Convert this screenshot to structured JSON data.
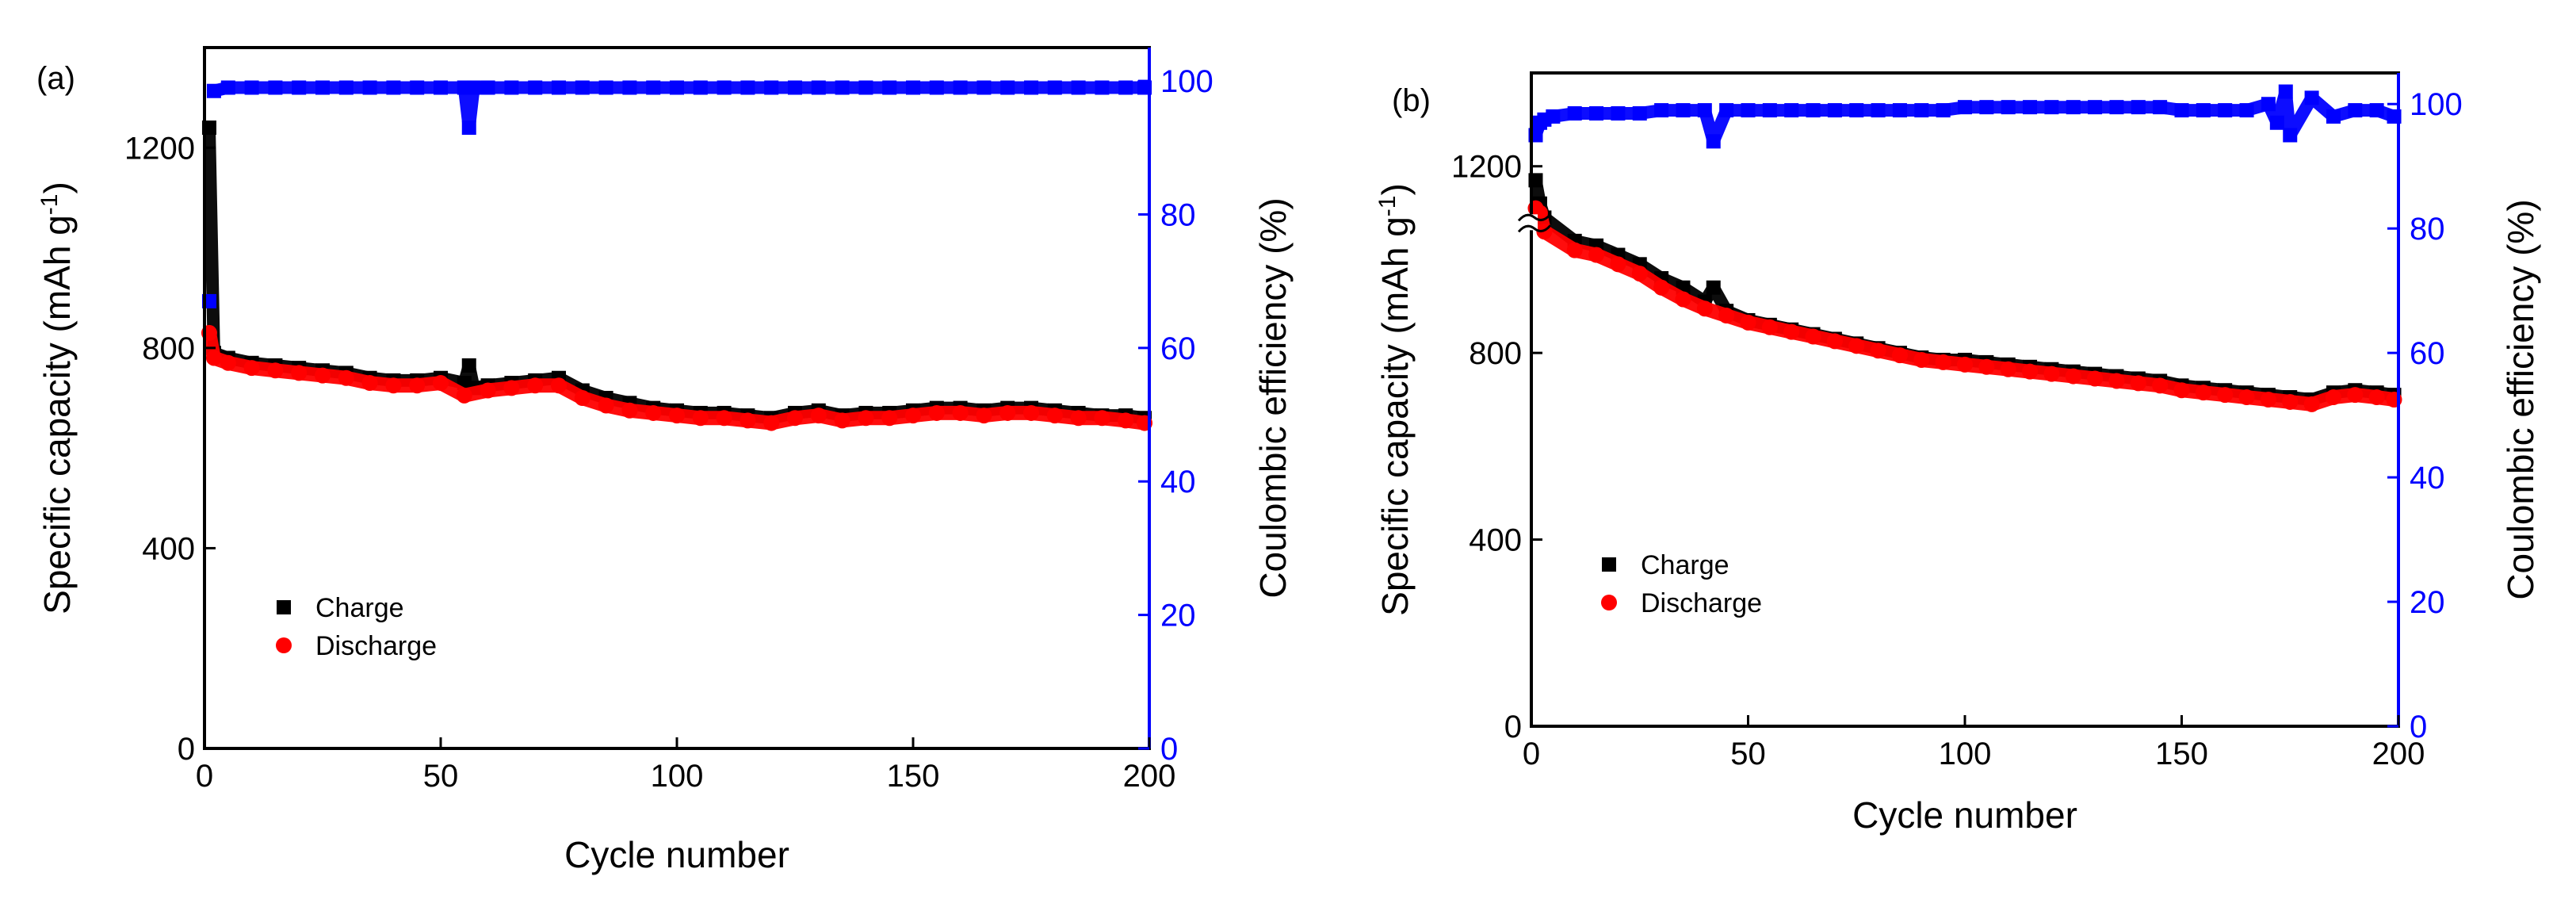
{
  "colors": {
    "charge": "#000000",
    "discharge": "#ff0000",
    "coulombic_efficiency": "#0000ff",
    "axis": "#000000"
  },
  "chart_data": [
    {
      "type": "scatter",
      "panel_label": "(a)",
      "xlabel": "Cycle number",
      "ylabel_left": "Specific capacity (mAh g-1)",
      "ylabel_left_main": "Specific capacity (mAh g",
      "ylabel_left_sup": "-1",
      "ylabel_left_close": ")",
      "ylabel_right": "Coulombic efficiency (%)",
      "xlim": [
        0,
        200
      ],
      "ylim_left": [
        0,
        1400
      ],
      "ylim_right": [
        0,
        105
      ],
      "x_ticks": [
        0,
        50,
        100,
        150,
        200
      ],
      "y_left_ticks": [
        0,
        400,
        800,
        1200
      ],
      "y_right_ticks": [
        0,
        20,
        40,
        60,
        80,
        100
      ],
      "legend": {
        "position": "lower-left",
        "entries": [
          "Charge",
          "Discharge"
        ]
      },
      "series": [
        {
          "name": "Charge",
          "axis": "left",
          "marker": "square",
          "x": [
            1,
            2,
            5,
            10,
            15,
            20,
            25,
            30,
            35,
            40,
            45,
            50,
            55,
            56,
            57,
            60,
            65,
            70,
            75,
            80,
            85,
            90,
            95,
            100,
            105,
            110,
            115,
            120,
            125,
            130,
            135,
            140,
            145,
            150,
            155,
            160,
            165,
            170,
            175,
            180,
            185,
            190,
            195,
            199
          ],
          "y": [
            1240,
            790,
            780,
            770,
            765,
            760,
            755,
            750,
            740,
            735,
            735,
            740,
            730,
            765,
            720,
            725,
            730,
            735,
            740,
            715,
            700,
            690,
            680,
            675,
            670,
            670,
            665,
            660,
            670,
            675,
            665,
            670,
            670,
            675,
            680,
            680,
            675,
            680,
            680,
            675,
            670,
            665,
            665,
            660
          ]
        },
        {
          "name": "Discharge",
          "axis": "left",
          "marker": "circle",
          "x": [
            1,
            2,
            5,
            10,
            15,
            20,
            25,
            30,
            35,
            40,
            45,
            50,
            55,
            60,
            65,
            70,
            75,
            80,
            85,
            90,
            95,
            100,
            105,
            110,
            115,
            120,
            125,
            130,
            135,
            140,
            145,
            150,
            155,
            160,
            165,
            170,
            175,
            180,
            185,
            190,
            195,
            199
          ],
          "y": [
            830,
            780,
            770,
            760,
            755,
            750,
            745,
            740,
            730,
            725,
            725,
            730,
            705,
            715,
            720,
            725,
            725,
            700,
            685,
            675,
            670,
            665,
            660,
            660,
            655,
            650,
            660,
            665,
            655,
            660,
            660,
            665,
            670,
            670,
            665,
            670,
            670,
            665,
            660,
            660,
            655,
            650
          ]
        },
        {
          "name": "Coulombic efficiency",
          "axis": "right",
          "marker": "square",
          "x": [
            1,
            2,
            5,
            10,
            15,
            20,
            25,
            30,
            35,
            40,
            45,
            50,
            55,
            56,
            57,
            60,
            65,
            70,
            75,
            80,
            85,
            90,
            95,
            100,
            105,
            110,
            115,
            120,
            125,
            130,
            135,
            140,
            145,
            150,
            155,
            160,
            165,
            170,
            175,
            180,
            185,
            190,
            195,
            199
          ],
          "y": [
            67,
            98.5,
            99,
            99,
            99,
            99,
            99,
            99,
            99,
            99,
            99,
            99,
            99,
            93,
            99,
            99,
            99,
            99,
            99,
            99,
            99,
            99,
            99,
            99,
            99,
            99,
            99,
            99,
            99,
            99,
            99,
            99,
            99,
            99,
            99,
            99,
            99,
            99,
            99,
            99,
            99,
            99,
            99,
            99
          ]
        }
      ]
    },
    {
      "type": "scatter",
      "panel_label": "(b)",
      "xlabel": "Cycle number",
      "ylabel_left": "Specific capacity (mAh g-1)",
      "ylabel_left_main": "Specific capacity (mAh g",
      "ylabel_left_sup": "-1",
      "ylabel_left_close": ")",
      "ylabel_right": "Coulombic efficiency (%)",
      "xlim": [
        0,
        200
      ],
      "ylim_left": [
        0,
        1400
      ],
      "ylim_right": [
        0,
        105
      ],
      "x_ticks": [
        0,
        50,
        100,
        150,
        200
      ],
      "y_left_ticks": [
        0,
        400,
        800,
        1200
      ],
      "y_right_ticks": [
        0,
        20,
        40,
        60,
        80,
        100
      ],
      "axis_break_left": true,
      "legend": {
        "position": "center-left",
        "entries": [
          "Charge",
          "Discharge"
        ]
      },
      "series": [
        {
          "name": "Charge",
          "axis": "left",
          "marker": "square",
          "x": [
            1,
            2,
            3,
            10,
            15,
            20,
            25,
            30,
            35,
            40,
            42,
            45,
            50,
            55,
            60,
            65,
            70,
            75,
            80,
            85,
            90,
            95,
            100,
            105,
            110,
            115,
            120,
            125,
            130,
            135,
            140,
            145,
            150,
            155,
            160,
            165,
            170,
            175,
            180,
            185,
            190,
            195,
            199
          ],
          "y": [
            1170,
            1120,
            1090,
            1040,
            1030,
            1010,
            990,
            960,
            940,
            910,
            940,
            890,
            870,
            860,
            850,
            840,
            830,
            820,
            810,
            800,
            790,
            785,
            785,
            780,
            775,
            770,
            765,
            760,
            755,
            750,
            745,
            740,
            730,
            725,
            720,
            715,
            710,
            705,
            700,
            715,
            720,
            715,
            710
          ]
        },
        {
          "name": "Discharge",
          "axis": "left",
          "marker": "circle",
          "x": [
            1,
            2,
            3,
            10,
            15,
            20,
            25,
            30,
            35,
            40,
            45,
            50,
            55,
            60,
            65,
            70,
            75,
            80,
            85,
            90,
            95,
            100,
            105,
            110,
            115,
            120,
            125,
            130,
            135,
            140,
            145,
            150,
            155,
            160,
            165,
            170,
            175,
            180,
            185,
            190,
            195,
            199
          ],
          "y": [
            1110,
            1100,
            1060,
            1020,
            1010,
            990,
            970,
            940,
            915,
            895,
            880,
            865,
            855,
            845,
            835,
            825,
            815,
            805,
            795,
            785,
            780,
            775,
            770,
            765,
            760,
            755,
            750,
            745,
            740,
            735,
            730,
            720,
            715,
            710,
            705,
            700,
            695,
            690,
            705,
            710,
            705,
            700
          ]
        },
        {
          "name": "Coulombic efficiency",
          "axis": "right",
          "marker": "square",
          "x": [
            1,
            2,
            3,
            5,
            10,
            15,
            20,
            25,
            30,
            35,
            40,
            42,
            45,
            50,
            55,
            60,
            65,
            70,
            75,
            80,
            85,
            90,
            95,
            100,
            105,
            110,
            115,
            120,
            125,
            130,
            135,
            140,
            145,
            150,
            155,
            160,
            165,
            170,
            172,
            174,
            175,
            180,
            185,
            190,
            195,
            199
          ],
          "y": [
            95,
            97,
            97.5,
            98,
            98.5,
            98.5,
            98.5,
            98.5,
            99,
            99,
            99,
            94,
            99,
            99,
            99,
            99,
            99,
            99,
            99,
            99,
            99,
            99,
            99,
            99.5,
            99.5,
            99.5,
            99.5,
            99.5,
            99.5,
            99.5,
            99.5,
            99.5,
            99.5,
            99,
            99,
            99,
            99,
            100,
            97,
            102,
            95,
            101,
            98,
            99,
            99,
            98
          ]
        }
      ]
    }
  ]
}
